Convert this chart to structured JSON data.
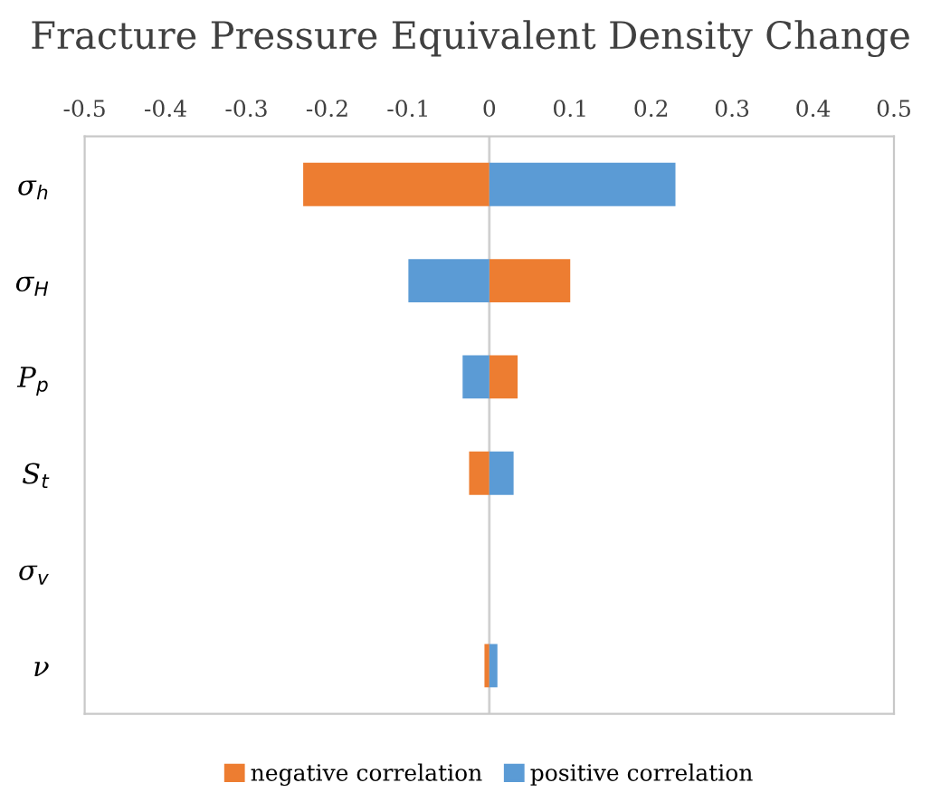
{
  "chart_data": {
    "type": "bar",
    "orientation": "horizontal",
    "stacked": true,
    "title": "Fracture Pressure Equivalent Density Change",
    "categories": [
      "σ$_{h}$",
      "σ$_{H}$",
      "P$_{p}$",
      "S$_{t}$",
      "σ$_{v}$",
      "ν"
    ],
    "series": [
      {
        "name": "negative correlation",
        "color": "#ed7d31",
        "values": [
          -0.23,
          0.1,
          0.035,
          -0.025,
          0,
          -0.006
        ]
      },
      {
        "name": "positive correlation",
        "color": "#5b9bd5",
        "values": [
          0.23,
          -0.1,
          -0.033,
          0.03,
          0,
          0.01
        ]
      }
    ],
    "xlim": [
      -0.5,
      0.5
    ],
    "xticks": [
      -0.5,
      -0.4,
      -0.3,
      -0.2,
      -0.1,
      0,
      0.1,
      0.2,
      0.3,
      0.4,
      0.5
    ],
    "grid": false,
    "ref_lines": [
      {
        "axis": "x",
        "value": 0,
        "color": "#d0d0d0"
      }
    ],
    "legend": "bottom"
  }
}
